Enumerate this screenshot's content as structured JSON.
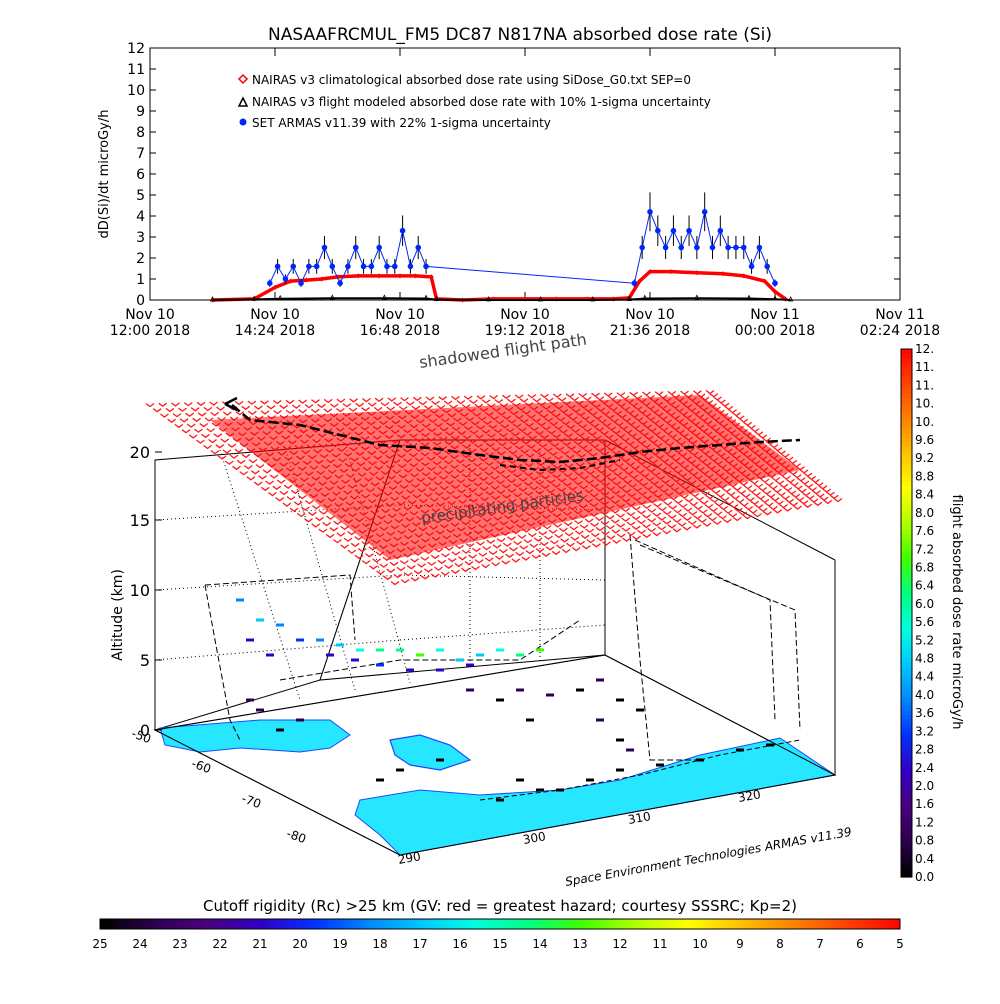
{
  "colors": {
    "clim": "#ff0000",
    "model": "#000000",
    "armas": "#0026ff",
    "cutoff": "#ff0000",
    "ground": "#27e6ff",
    "frame": "#000000"
  },
  "chart_data": [
    {
      "type": "line",
      "title": "NASAAFRCMUL_FM5 DC87 N817NA absorbed dose rate (Si)",
      "xlabel": "",
      "ylabel": "dD(Si)/dt microGy/h",
      "ylim": [
        0,
        12
      ],
      "xlim_hours": [
        12.0,
        26.4
      ],
      "yticks": [
        "0",
        "1",
        "2",
        "3",
        "4",
        "5",
        "6",
        "7",
        "8",
        "9",
        "10",
        "11",
        "12"
      ],
      "xticks": [
        {
          "h": 12.0,
          "line1": "Nov 10",
          "line2": "12:00 2018"
        },
        {
          "h": 14.4,
          "line1": "Nov 10",
          "line2": "14:24 2018"
        },
        {
          "h": 16.8,
          "line1": "Nov 10",
          "line2": "16:48 2018"
        },
        {
          "h": 19.2,
          "line1": "Nov 10",
          "line2": "19:12 2018"
        },
        {
          "h": 21.6,
          "line1": "Nov 10",
          "line2": "21:36 2018"
        },
        {
          "h": 24.0,
          "line1": "Nov 11",
          "line2": "00:00 2018"
        },
        {
          "h": 26.4,
          "line1": "Nov 11",
          "line2": "02:24 2018"
        }
      ],
      "legend": [
        "NAIRAS v3 climatological absorbed dose rate using SiDose_G0.txt SEP=0",
        "NAIRAS v3 flight modeled absorbed dose rate with 10% 1-sigma uncertainty",
        "SET ARMAS v11.39 with 22% 1-sigma uncertainty"
      ],
      "series": [
        {
          "name": "NAIRAS v3 climatological absorbed dose rate using SiDose_G0.txt SEP=0",
          "x": [
            13.2,
            14.0,
            14.4,
            14.7,
            15.0,
            15.3,
            15.6,
            16.0,
            16.4,
            16.8,
            17.1,
            17.4,
            17.5,
            18.0,
            18.6,
            19.2,
            19.8,
            20.4,
            20.9,
            21.2,
            21.4,
            21.6,
            22.0,
            22.5,
            23.0,
            23.4,
            23.8,
            24.0,
            24.2
          ],
          "values": [
            0,
            0.05,
            0.6,
            0.9,
            0.95,
            1.0,
            1.1,
            1.15,
            1.15,
            1.15,
            1.15,
            1.1,
            0.05,
            0,
            0.05,
            0.05,
            0.05,
            0.05,
            0.05,
            0.1,
            0.9,
            1.35,
            1.35,
            1.3,
            1.25,
            1.15,
            0.9,
            0.4,
            0.05
          ]
        },
        {
          "name": "NAIRAS v3 flight modeled absorbed dose rate with 10% 1-sigma uncertainty",
          "x": [
            13.2,
            14.0,
            14.5,
            15.5,
            16.5,
            17.3,
            17.5,
            18.5,
            19.5,
            20.5,
            21.2,
            21.5,
            22.5,
            23.5,
            24.0,
            24.3
          ],
          "values": [
            0,
            0.03,
            0.06,
            0.08,
            0.08,
            0.07,
            0.02,
            0,
            0,
            0,
            0.02,
            0.07,
            0.08,
            0.07,
            0.04,
            0
          ]
        },
        {
          "name": "SET ARMAS v11.39 with 22% 1-sigma uncertainty",
          "x": [
            14.3,
            14.45,
            14.6,
            14.75,
            14.9,
            15.05,
            15.2,
            15.35,
            15.5,
            15.65,
            15.8,
            15.95,
            16.1,
            16.25,
            16.4,
            16.55,
            16.7,
            16.85,
            17.0,
            17.15,
            17.3,
            21.3,
            21.45,
            21.6,
            21.75,
            21.9,
            22.05,
            22.2,
            22.35,
            22.5,
            22.65,
            22.8,
            22.95,
            23.1,
            23.25,
            23.4,
            23.55,
            23.7,
            23.85,
            24.0
          ],
          "values": [
            0.8,
            1.6,
            1.0,
            1.6,
            0.8,
            1.6,
            1.6,
            2.5,
            1.6,
            0.8,
            1.6,
            2.5,
            1.6,
            1.6,
            2.5,
            1.6,
            1.6,
            3.3,
            1.6,
            2.5,
            1.6,
            0.8,
            2.5,
            4.2,
            3.3,
            2.5,
            3.3,
            2.5,
            3.3,
            2.5,
            4.2,
            2.5,
            3.3,
            2.5,
            2.5,
            2.5,
            1.6,
            2.5,
            1.6,
            0.8
          ]
        }
      ]
    },
    {
      "type": "scatter",
      "title": "",
      "zlabel": "Altitude (km)",
      "z_ticks": [
        "0",
        "5",
        "10",
        "15",
        "20"
      ],
      "lat_ticks": [
        "-50",
        "-60",
        "-70",
        "-80"
      ],
      "lon_ticks": [
        "290",
        "300",
        "310",
        "320"
      ],
      "annotations": [
        "shadowed flight path",
        "precipitating particles",
        "Space Environment Technologies ARMAS v11.39"
      ],
      "colorbar_label": "flight absorbed dose rate microGy/h",
      "colorbar_ticks": [
        "0.0",
        "0.4",
        "0.8",
        "1.2",
        "1.6",
        "2.0",
        "2.4",
        "2.8",
        "3.2",
        "3.6",
        "4.0",
        "4.4",
        "4.8",
        "5.2",
        "5.6",
        "6.0",
        "6.4",
        "6.8",
        "7.2",
        "7.6",
        "8.0",
        "8.4",
        "8.8",
        "9.2",
        "9.6",
        "10.",
        "10.",
        "11.",
        "11.",
        "12."
      ],
      "cutoff_label": "Cutoff rigidity (Rc) >25 km (GV: red = greatest hazard; courtesy SSSRC; Kp=2)",
      "cutoff_ticks": [
        "25",
        "24",
        "23",
        "22",
        "21",
        "20",
        "19",
        "18",
        "17",
        "16",
        "15",
        "14",
        "13",
        "12",
        "11",
        "10",
        "9",
        "8",
        "7",
        "6",
        "5"
      ],
      "colormap": [
        "#000000",
        "#2d0050",
        "#4b0082",
        "#3000c8",
        "#0033ff",
        "#0088ff",
        "#00c8ff",
        "#00ffe0",
        "#00ff80",
        "#40ff00",
        "#b0ff00",
        "#ffff00",
        "#ffc000",
        "#ff8000",
        "#ff4000",
        "#ff0000"
      ]
    }
  ]
}
